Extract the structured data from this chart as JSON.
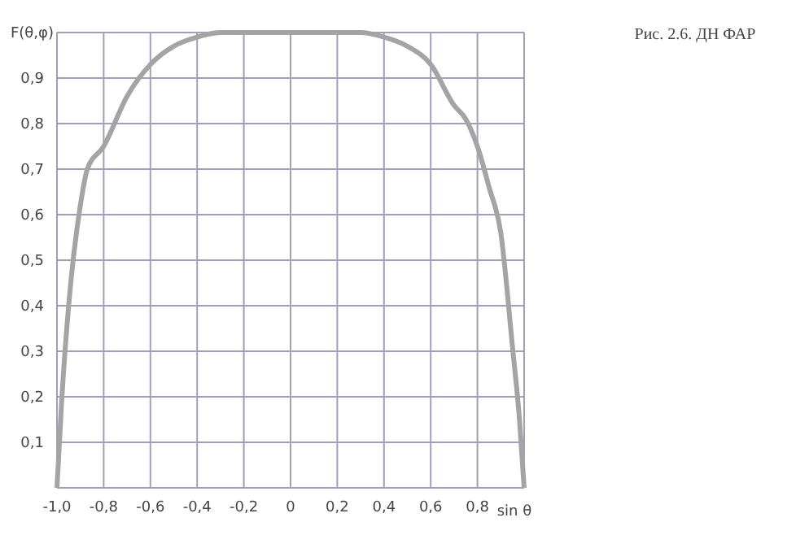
{
  "chart_data": {
    "type": "line",
    "xlabel": "sin θ",
    "ylabel": "F(θ,φ)",
    "annotations": [
      "Рис. 2.6. ДН ФАР"
    ],
    "x": [
      -1.0,
      -0.98,
      -0.95,
      -0.9,
      -0.87,
      -0.8,
      -0.7,
      -0.6,
      -0.5,
      -0.4,
      -0.3,
      0,
      0.3,
      0.4,
      0.5,
      0.6,
      0.7,
      0.75,
      0.8,
      0.85,
      0.9,
      0.95,
      0.98,
      1.0
    ],
    "series": [
      {
        "color": "#a4a4a4",
        "values": [
          0,
          0.19,
          0.4,
          0.62,
          0.7,
          0.75,
          0.86,
          0.93,
          0.97,
          0.99,
          1.0,
          1.0,
          1.0,
          0.99,
          0.97,
          0.93,
          0.84,
          0.81,
          0.75,
          0.66,
          0.56,
          0.31,
          0.15,
          0
        ]
      }
    ],
    "xlim": [
      -1.0,
      1.0
    ],
    "ylim": [
      0,
      1.0
    ],
    "xticks": [
      {
        "value": -1.0,
        "label": "-1,0"
      },
      {
        "value": -0.8,
        "label": "-0,8"
      },
      {
        "value": -0.6,
        "label": "-0,6"
      },
      {
        "value": -0.4,
        "label": "-0,4"
      },
      {
        "value": -0.2,
        "label": "-0,2"
      },
      0,
      {
        "value": 0.2,
        "label": "0,2"
      },
      {
        "value": 0.4,
        "label": "0,4"
      },
      {
        "value": 0.6,
        "label": "0,6"
      },
      {
        "value": 0.8,
        "label": "0,8"
      },
      {
        "value": 1.0,
        "label": null
      }
    ],
    "yticks": [
      {
        "value": 0,
        "label": null
      },
      {
        "value": 0.1,
        "label": "0,1"
      },
      {
        "value": 0.2,
        "label": "0,2"
      },
      {
        "value": 0.3,
        "label": "0,3"
      },
      {
        "value": 0.4,
        "label": "0,4"
      },
      {
        "value": 0.5,
        "label": "0,5"
      },
      {
        "value": 0.6,
        "label": "0,6"
      },
      {
        "value": 0.7,
        "label": "0,7"
      },
      {
        "value": 0.8,
        "label": "0,8"
      },
      {
        "value": 0.9,
        "label": "0,9"
      },
      {
        "value": 1.0,
        "label": null
      }
    ],
    "grid": true,
    "marker": "none",
    "line_style": "solid"
  }
}
